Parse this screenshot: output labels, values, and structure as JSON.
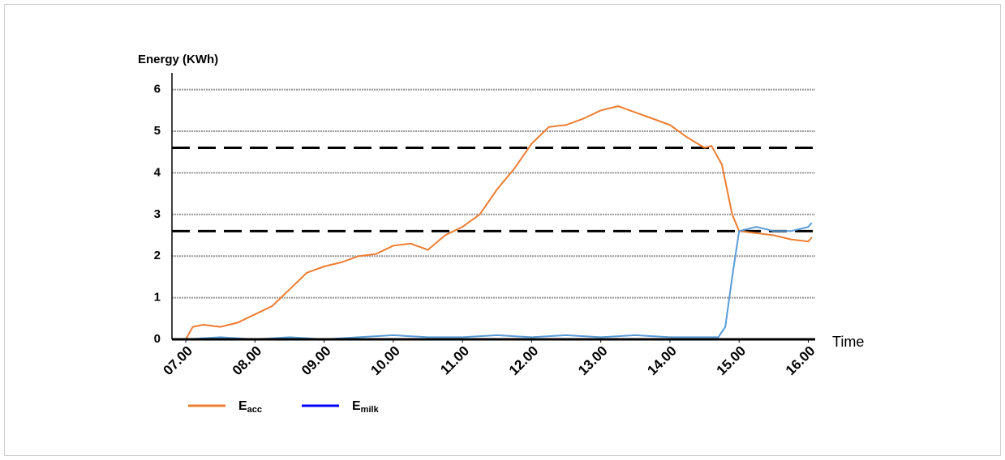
{
  "chart_data": {
    "type": "line",
    "y_label": "Energy (KWh)",
    "x_label": "Time",
    "xlim": [
      6.8,
      16.1
    ],
    "ylim": [
      0,
      6.4
    ],
    "yticks": [
      0,
      1,
      2,
      3,
      4,
      5,
      6
    ],
    "xticks": [
      {
        "value": 7,
        "label": "07.00"
      },
      {
        "value": 8,
        "label": "08.00"
      },
      {
        "value": 9,
        "label": "09.00"
      },
      {
        "value": 10,
        "label": "10.00"
      },
      {
        "value": 11,
        "label": "11.00"
      },
      {
        "value": 12,
        "label": "12.00"
      },
      {
        "value": 13,
        "label": "13.00"
      },
      {
        "value": 14,
        "label": "14.00"
      },
      {
        "value": 15,
        "label": "15.00"
      },
      {
        "value": 16,
        "label": "16.00"
      }
    ],
    "grid": true,
    "reference_lines": [
      4.6,
      2.6
    ],
    "legend": "bottom-left",
    "series": [
      {
        "name": "E",
        "name_sub": "acc",
        "color": "#ed7d31",
        "legend_color": "#ed7d31",
        "x": [
          7.0,
          7.1,
          7.25,
          7.5,
          7.75,
          8.0,
          8.25,
          8.5,
          8.75,
          9.0,
          9.25,
          9.5,
          9.75,
          10.0,
          10.25,
          10.5,
          10.75,
          11.0,
          11.25,
          11.5,
          11.75,
          12.0,
          12.25,
          12.5,
          12.75,
          13.0,
          13.25,
          13.5,
          13.75,
          14.0,
          14.25,
          14.5,
          14.6,
          14.75,
          14.9,
          15.0,
          15.25,
          15.5,
          15.75,
          16.0,
          16.05
        ],
        "values": [
          0,
          0.3,
          0.35,
          0.3,
          0.4,
          0.6,
          0.8,
          1.2,
          1.6,
          1.75,
          1.85,
          2.0,
          2.05,
          2.25,
          2.3,
          2.15,
          2.5,
          2.7,
          3.0,
          3.6,
          4.1,
          4.7,
          5.1,
          5.15,
          5.3,
          5.5,
          5.6,
          5.45,
          5.3,
          5.15,
          4.85,
          4.6,
          4.65,
          4.2,
          3.0,
          2.6,
          2.55,
          2.5,
          2.4,
          2.35,
          2.45
        ]
      },
      {
        "name": "E",
        "name_sub": "milk",
        "color": "#5b9bd5",
        "legend_color": "#0000ff",
        "x": [
          7.0,
          7.5,
          8.0,
          8.5,
          9.0,
          9.5,
          10.0,
          10.5,
          11.0,
          11.5,
          12.0,
          12.5,
          13.0,
          13.5,
          14.0,
          14.5,
          14.7,
          14.8,
          14.9,
          15.0,
          15.25,
          15.5,
          15.75,
          16.0,
          16.05
        ],
        "values": [
          0,
          0.05,
          0,
          0.05,
          0,
          0.05,
          0.1,
          0.05,
          0.05,
          0.1,
          0.05,
          0.1,
          0.05,
          0.1,
          0.05,
          0.05,
          0.05,
          0.3,
          1.5,
          2.6,
          2.7,
          2.6,
          2.6,
          2.7,
          2.8
        ]
      }
    ]
  }
}
